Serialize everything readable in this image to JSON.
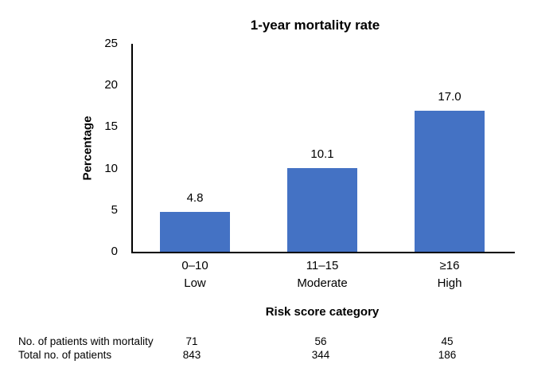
{
  "chart_data": {
    "type": "bar",
    "title": "1-year mortality rate",
    "ylabel": "Percentage",
    "xlabel": "Risk score category",
    "ylim": [
      0,
      25
    ],
    "yticks": [
      0,
      5,
      10,
      15,
      20,
      25
    ],
    "categories": [
      {
        "range": "0–10",
        "level": "Low"
      },
      {
        "range": "11–15",
        "level": "Moderate"
      },
      {
        "range": "≥16",
        "level": "High"
      }
    ],
    "values": [
      4.8,
      10.1,
      17.0
    ],
    "value_labels": [
      "4.8",
      "10.1",
      "17.0"
    ],
    "bar_color": "#4472C4",
    "axis_color": "#000000",
    "grid": false,
    "legend": false
  },
  "table": {
    "rows": [
      {
        "label": "No. of patients with mortality",
        "values": [
          "71",
          "56",
          "45"
        ]
      },
      {
        "label": "Total no. of patients",
        "values": [
          "843",
          "344",
          "186"
        ]
      }
    ]
  }
}
